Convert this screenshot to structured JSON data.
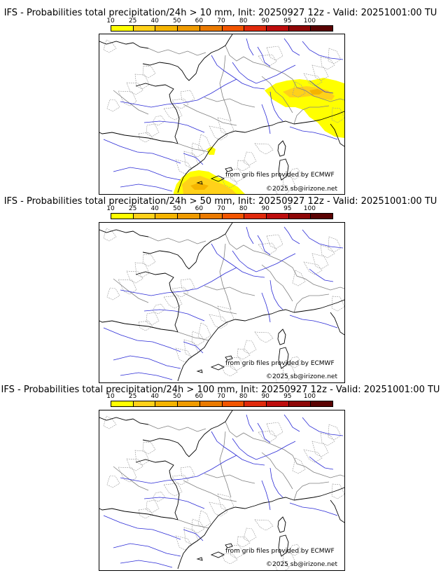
{
  "colorbar": {
    "ticks": [
      "10",
      "25",
      "40",
      "50",
      "60",
      "70",
      "80",
      "90",
      "95",
      "100"
    ],
    "colors": [
      "#ffff00",
      "#ffd11a",
      "#f5b400",
      "#ef9b00",
      "#ea7a00",
      "#f25500",
      "#e02a0c",
      "#bd0d0d",
      "#8e0707",
      "#5a0303"
    ]
  },
  "panels": [
    {
      "title": "IFS - Probabilities total precipitation/24h > 10 mm, Init: 20250927 12z - Valid: 20251001:00 TU",
      "credit": "from grib files provided by ECMWF",
      "copyright": "©2025 sb@irizone.net",
      "precip_areas": [
        "alps",
        "corsica-sardinia-north",
        "ne-spain-gulf-of-lion"
      ]
    },
    {
      "title": "IFS - Probabilities total precipitation/24h > 50 mm, Init: 20250927 12z - Valid: 20251001:00 TU",
      "credit": "from grib files provided by ECMWF",
      "copyright": "©2025 sb@irizone.net",
      "precip_areas": []
    },
    {
      "title": "IFS - Probabilities total precipitation/24h > 100 mm, Init: 20250927 12z - Valid: 20251001:00 TU",
      "credit": "from grib files provided by ECMWF",
      "copyright": "©2025 sb@irizone.net",
      "precip_areas": []
    }
  ]
}
